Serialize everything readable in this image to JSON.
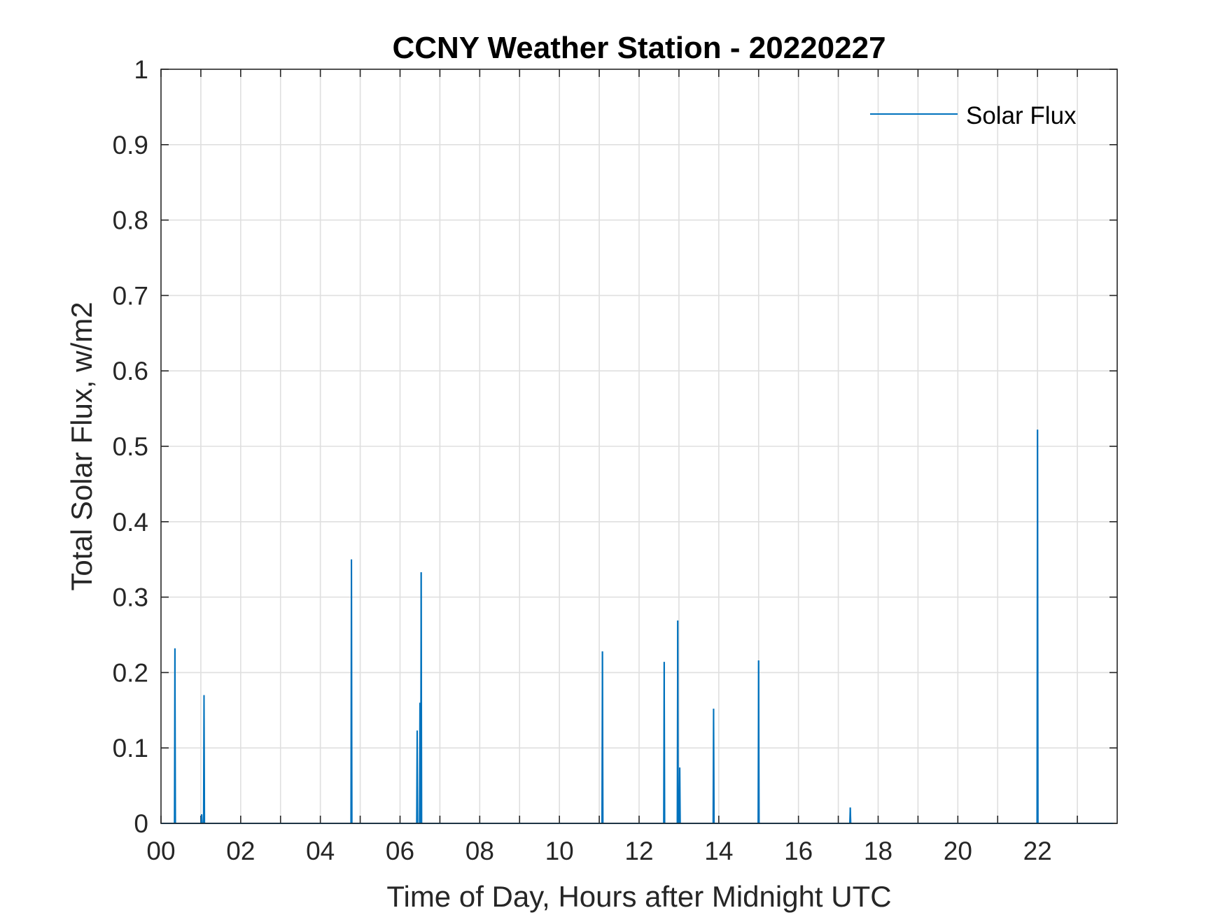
{
  "chart_data": {
    "type": "line",
    "title": "CCNY Weather Station - 20220227",
    "xlabel": "Time of Day, Hours after Midnight UTC",
    "ylabel": "Total Solar Flux, w/m2",
    "xlim": [
      0,
      24
    ],
    "ylim": [
      0,
      1
    ],
    "xticks": [
      0,
      2,
      4,
      6,
      8,
      10,
      12,
      14,
      16,
      18,
      20,
      22
    ],
    "xtick_labels": [
      "00",
      "02",
      "04",
      "06",
      "08",
      "10",
      "12",
      "14",
      "16",
      "18",
      "20",
      "22"
    ],
    "xgrid_step": 1,
    "yticks": [
      0,
      0.1,
      0.2,
      0.3,
      0.4,
      0.5,
      0.6,
      0.7,
      0.8,
      0.9,
      1
    ],
    "ytick_labels": [
      "0",
      "0.1",
      "0.2",
      "0.3",
      "0.4",
      "0.5",
      "0.6",
      "0.7",
      "0.8",
      "0.9",
      "1"
    ],
    "grid": true,
    "legend_position": "top-right",
    "series": [
      {
        "name": "Solar Flux",
        "color": "#0072BD",
        "spikes": [
          {
            "x": 0.35,
            "y": 0.232
          },
          {
            "x": 1.02,
            "y": 0.012
          },
          {
            "x": 1.08,
            "y": 0.17
          },
          {
            "x": 4.78,
            "y": 0.35
          },
          {
            "x": 6.43,
            "y": 0.123
          },
          {
            "x": 6.5,
            "y": 0.16
          },
          {
            "x": 6.53,
            "y": 0.333
          },
          {
            "x": 11.08,
            "y": 0.228
          },
          {
            "x": 12.63,
            "y": 0.214
          },
          {
            "x": 12.97,
            "y": 0.269
          },
          {
            "x": 13.02,
            "y": 0.074
          },
          {
            "x": 13.87,
            "y": 0.152
          },
          {
            "x": 15.0,
            "y": 0.216
          },
          {
            "x": 17.3,
            "y": 0.021
          },
          {
            "x": 22.0,
            "y": 0.522
          }
        ]
      }
    ]
  }
}
